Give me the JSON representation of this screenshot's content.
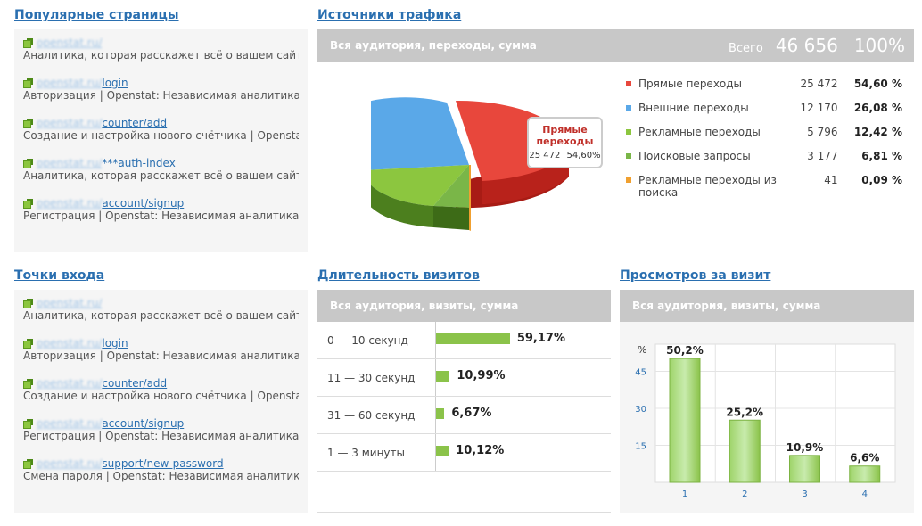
{
  "popular": {
    "title": "Популярные страницы",
    "items": [
      {
        "host": "openstat.ru/",
        "path": "",
        "desc": "Аналитика, которая расскажет всё о вашем сайте | Openstat"
      },
      {
        "host": "openstat.ru/",
        "path": "login",
        "desc": "Авторизация | Openstat: Независимая аналитика"
      },
      {
        "host": "openstat.ru/",
        "path": "counter/add",
        "desc": "Создание и настройка нового счётчика | Openstat: Независимая аналитика"
      },
      {
        "host": "openstat.ru/",
        "path": "***auth-index",
        "desc": "Аналитика, которая расскажет всё о вашем сайте | Openstat"
      },
      {
        "host": "openstat.ru/",
        "path": "account/signup",
        "desc": "Регистрация | Openstat: Независимая аналитика"
      }
    ]
  },
  "entry": {
    "title": "Точки входа",
    "items": [
      {
        "host": "openstat.ru/",
        "path": "",
        "desc": "Аналитика, которая расскажет всё о вашем сайте | Openstat"
      },
      {
        "host": "openstat.ru/",
        "path": "login",
        "desc": "Авторизация | Openstat: Независимая аналитика"
      },
      {
        "host": "openstat.ru/",
        "path": "counter/add",
        "desc": "Создание и настройка нового счётчика | Openstat: Независимая аналитика"
      },
      {
        "host": "openstat.ru/",
        "path": "account/signup",
        "desc": "Регистрация | Openstat: Независимая аналитика"
      },
      {
        "host": "openstat.ru/",
        "path": "support/new-password",
        "desc": "Смена пароля | Openstat: Независимая аналитика"
      }
    ]
  },
  "traffic": {
    "title": "Источники трафика",
    "bar_label": "Вся аудитория, переходы, сумма",
    "total_label": "Всего",
    "total_value": "46 656",
    "total_pct": "100%",
    "tooltip": {
      "name_line1": "Прямые",
      "name_line2": "переходы",
      "value": "25 472",
      "pct": "54,60%"
    },
    "rows": [
      {
        "name": "Прямые переходы",
        "value": "25 472",
        "pct": "54,60 %",
        "color": "#e8473c"
      },
      {
        "name": "Внешние переходы",
        "value": "12 170",
        "pct": "26,08 %",
        "color": "#5aa8e8"
      },
      {
        "name": "Рекламные переходы",
        "value": "5 796",
        "pct": "12,42 %",
        "color": "#8cc63f"
      },
      {
        "name": "Поисковые запросы",
        "value": "3 177",
        "pct": "6,81 %",
        "color": "#7ab648"
      },
      {
        "name": "Рекламные переходы из поиска",
        "value": "41",
        "pct": "0,09 %",
        "color": "#f0a030"
      }
    ]
  },
  "duration": {
    "title": "Длительность визитов",
    "bar_label": "Вся аудитория, визиты, сумма",
    "rows": [
      {
        "label": "0 — 10 секунд",
        "pct": "59,17%",
        "value": 59.17
      },
      {
        "label": "11 — 30 секунд",
        "pct": "10,99%",
        "value": 10.99
      },
      {
        "label": "31 — 60 секунд",
        "pct": "6,67%",
        "value": 6.67
      },
      {
        "label": "1 — 3 минуты",
        "pct": "10,12%",
        "value": 10.12
      }
    ]
  },
  "views": {
    "title": "Просмотров за визит",
    "bar_label": "Вся аудитория, визиты, сумма"
  },
  "chart_data": {
    "type": "bar",
    "categories": [
      "1",
      "2",
      "3",
      "4"
    ],
    "values": [
      50.2,
      25.2,
      10.9,
      6.6
    ],
    "value_labels": [
      "50,2%",
      "25,2%",
      "10,9%",
      "6,6%"
    ],
    "ylabel": "%",
    "yticks": [
      "15",
      "30",
      "45"
    ],
    "ylim": [
      0,
      56
    ],
    "grid": true
  }
}
